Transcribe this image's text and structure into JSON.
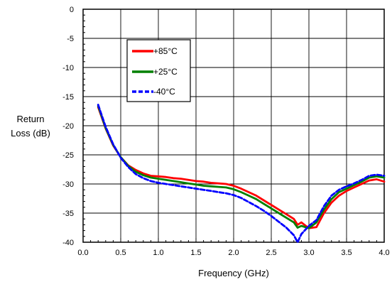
{
  "chart_data": {
    "type": "line",
    "xlabel": "Frequency (GHz)",
    "ylabel_lines": [
      "Return",
      "Loss (dB)"
    ],
    "xlim": [
      0.0,
      4.0
    ],
    "ylim": [
      -40,
      0
    ],
    "x_ticks": [
      "0.0",
      "0.5",
      "1.0",
      "1.5",
      "2.0",
      "2.5",
      "3.0",
      "3.5",
      "4.0"
    ],
    "y_ticks": [
      "0",
      "-5",
      "-10",
      "-15",
      "-20",
      "-25",
      "-30",
      "-35",
      "-40"
    ],
    "x_major": 0.5,
    "y_major": 5,
    "x_minor": 0.1,
    "y_minor": 1,
    "grid": true,
    "legend_position": "upper-center",
    "series": [
      {
        "name": "+85°C",
        "color": "#ff0000",
        "dash": "solid",
        "x": [
          0.2,
          0.3,
          0.4,
          0.5,
          0.6,
          0.7,
          0.8,
          0.9,
          1.0,
          1.1,
          1.2,
          1.3,
          1.4,
          1.5,
          1.6,
          1.7,
          1.8,
          1.9,
          2.0,
          2.1,
          2.2,
          2.3,
          2.4,
          2.5,
          2.6,
          2.7,
          2.8,
          2.85,
          2.9,
          3.0,
          3.1,
          3.2,
          3.3,
          3.4,
          3.5,
          3.6,
          3.7,
          3.8,
          3.9,
          4.0
        ],
        "y": [
          -16.8,
          -20.5,
          -23.4,
          -25.4,
          -26.8,
          -27.6,
          -28.2,
          -28.6,
          -28.7,
          -28.8,
          -29.0,
          -29.1,
          -29.3,
          -29.5,
          -29.6,
          -29.8,
          -29.9,
          -30.0,
          -30.3,
          -30.8,
          -31.4,
          -32.0,
          -32.8,
          -33.6,
          -34.4,
          -35.2,
          -36.0,
          -37.0,
          -36.6,
          -37.6,
          -37.4,
          -35.0,
          -33.2,
          -32.0,
          -31.2,
          -30.6,
          -30.0,
          -29.4,
          -29.2,
          -29.6
        ]
      },
      {
        "name": "+25°C",
        "color": "#008000",
        "dash": "solid",
        "x": [
          0.2,
          0.3,
          0.4,
          0.5,
          0.6,
          0.7,
          0.8,
          0.9,
          1.0,
          1.1,
          1.2,
          1.3,
          1.4,
          1.5,
          1.6,
          1.7,
          1.8,
          1.9,
          2.0,
          2.1,
          2.2,
          2.3,
          2.4,
          2.5,
          2.6,
          2.7,
          2.8,
          2.85,
          2.9,
          3.0,
          3.1,
          3.2,
          3.3,
          3.4,
          3.5,
          3.6,
          3.7,
          3.8,
          3.9,
          4.0
        ],
        "y": [
          -16.6,
          -20.4,
          -23.3,
          -25.4,
          -26.9,
          -27.9,
          -28.5,
          -28.9,
          -29.1,
          -29.3,
          -29.5,
          -29.7,
          -29.9,
          -30.1,
          -30.3,
          -30.4,
          -30.5,
          -30.6,
          -30.9,
          -31.4,
          -32.0,
          -32.6,
          -33.4,
          -34.2,
          -35.0,
          -35.8,
          -36.6,
          -37.5,
          -37.2,
          -37.6,
          -36.6,
          -34.4,
          -32.6,
          -31.4,
          -30.8,
          -30.2,
          -29.6,
          -28.9,
          -28.7,
          -28.9
        ]
      },
      {
        "name": "-40°C",
        "color": "#0000ff",
        "dash": "dashed",
        "x": [
          0.2,
          0.3,
          0.4,
          0.5,
          0.6,
          0.7,
          0.8,
          0.9,
          1.0,
          1.1,
          1.2,
          1.3,
          1.4,
          1.5,
          1.6,
          1.7,
          1.8,
          1.9,
          2.0,
          2.1,
          2.2,
          2.3,
          2.4,
          2.5,
          2.6,
          2.7,
          2.8,
          2.85,
          2.9,
          3.0,
          3.1,
          3.2,
          3.3,
          3.4,
          3.5,
          3.6,
          3.7,
          3.8,
          3.9,
          4.0
        ],
        "y": [
          -16.4,
          -20.2,
          -23.2,
          -25.5,
          -27.1,
          -28.3,
          -29.0,
          -29.5,
          -29.8,
          -30.0,
          -30.2,
          -30.4,
          -30.6,
          -30.8,
          -31.0,
          -31.2,
          -31.4,
          -31.6,
          -31.9,
          -32.4,
          -33.1,
          -33.8,
          -34.6,
          -35.5,
          -36.5,
          -37.5,
          -38.8,
          -40.0,
          -38.6,
          -37.2,
          -36.2,
          -33.8,
          -32.0,
          -31.0,
          -30.4,
          -29.9,
          -29.3,
          -28.6,
          -28.4,
          -28.6
        ]
      }
    ]
  }
}
